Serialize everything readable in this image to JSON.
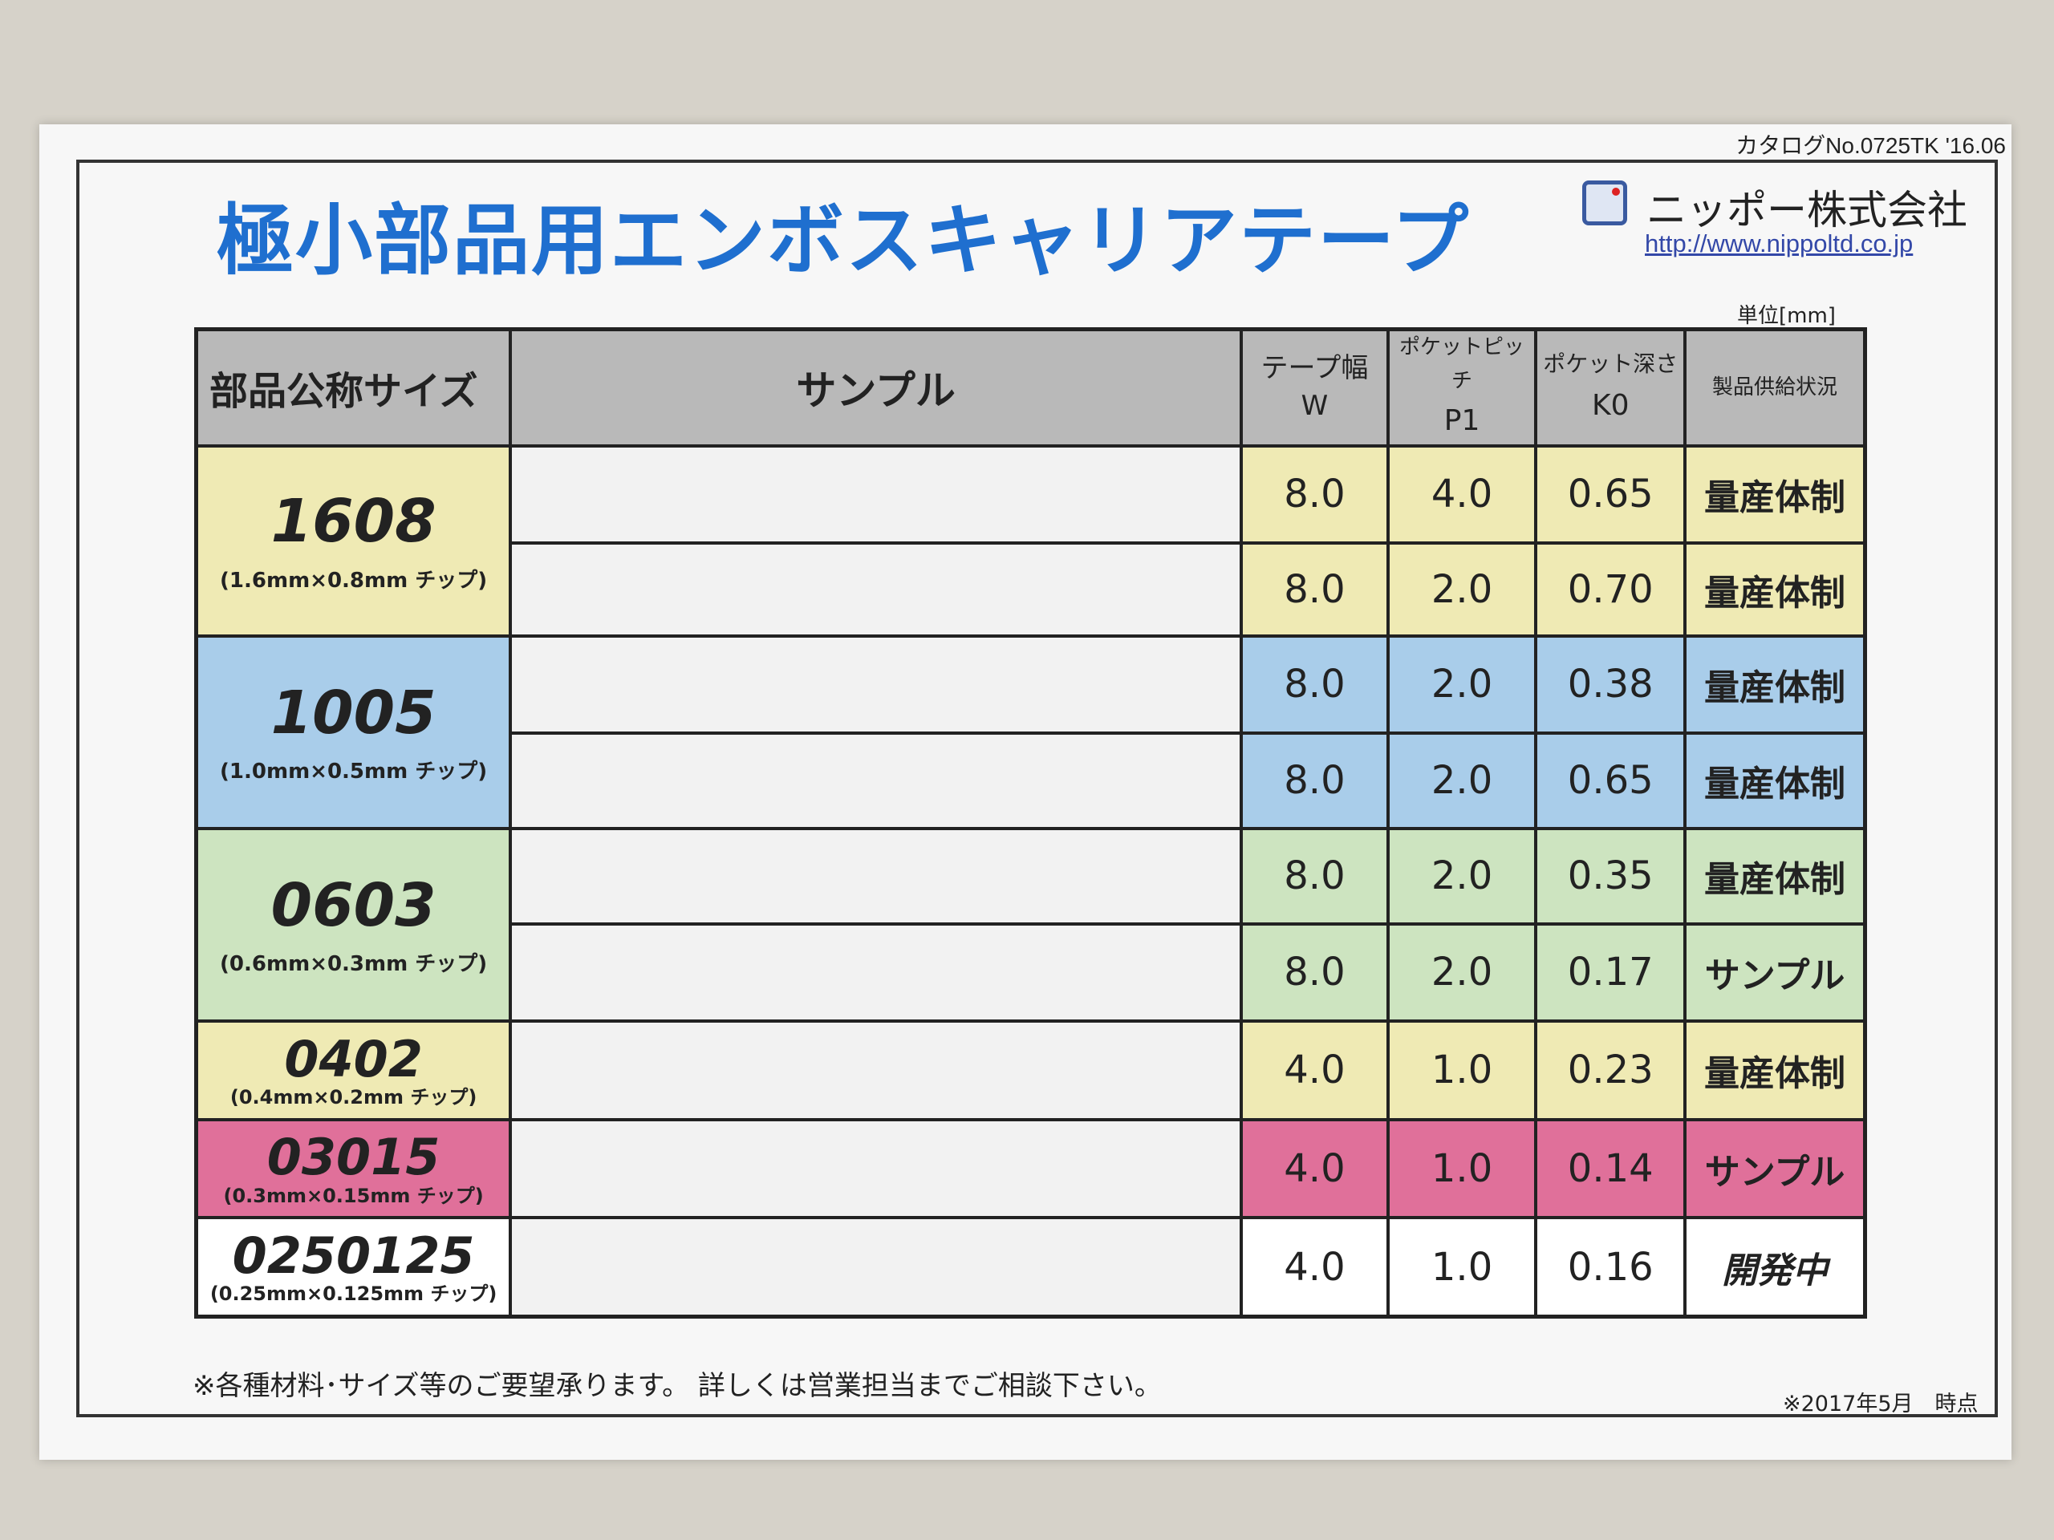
{
  "catalog_no": "カタログNo.0725TK '16.06",
  "title": "極小部品用エンボスキャリアテープ",
  "company": "ニッポー株式会社",
  "url": "http://www.nippoltd.co.jp",
  "unit": "単位[mm]",
  "colors": {
    "title": "#1f6fcf",
    "yellow": "#efeab4",
    "blue": "#a9cdea",
    "green": "#cde4c0",
    "pink": "#e0709a",
    "white": "#ffffff",
    "header": "#b9b9b9"
  },
  "headers": {
    "size": "部品公称サイズ",
    "sample": "サンプル",
    "w1": "テープ幅",
    "w2": "W",
    "p1": "ポケットピッチ",
    "p2": "P1",
    "k1": "ポケット深さ",
    "k2": "K0",
    "status": "製品供給状況"
  },
  "groups": [
    {
      "code": "1608",
      "dim": "(1.6mm×0.8mm チップ)",
      "color": "#efeab4",
      "rows": [
        {
          "tape": "clear",
          "w": "8.0",
          "p1": "4.0",
          "k0": "0.65",
          "status": "量産体制"
        },
        {
          "tape": "clear",
          "w": "8.0",
          "p1": "2.0",
          "k0": "0.70",
          "status": "量産体制"
        }
      ]
    },
    {
      "code": "1005",
      "dim": "(1.0mm×0.5mm チップ)",
      "color": "#a9cdea",
      "rows": [
        {
          "tape": "dark",
          "w": "8.0",
          "p1": "2.0",
          "k0": "0.38",
          "status": "量産体制"
        },
        {
          "tape": "clear",
          "w": "8.0",
          "p1": "2.0",
          "k0": "0.65",
          "status": "量産体制"
        }
      ]
    },
    {
      "code": "0603",
      "dim": "(0.6mm×0.3mm チップ)",
      "color": "#cde4c0",
      "rows": [
        {
          "tape": "dark",
          "w": "8.0",
          "p1": "2.0",
          "k0": "0.35",
          "status": "量産体制"
        },
        {
          "tape": "dark",
          "w": "8.0",
          "p1": "2.0",
          "k0": "0.17",
          "status": "サンプル"
        }
      ]
    },
    {
      "code": "0402",
      "dim": "(0.4mm×0.2mm チップ)",
      "color": "#efeab4",
      "rows": [
        {
          "tape": "thin",
          "w": "4.0",
          "p1": "1.0",
          "k0": "0.23",
          "status": "量産体制"
        }
      ]
    },
    {
      "code": "03015",
      "dim": "(0.3mm×0.15mm チップ)",
      "color": "#e0709a",
      "rows": [
        {
          "tape": "thin",
          "w": "4.0",
          "p1": "1.0",
          "k0": "0.14",
          "status": "サンプル"
        }
      ]
    },
    {
      "code": "0250125",
      "dim": "(0.25mm×0.125mm チップ)",
      "color": "#ffffff",
      "rows": [
        {
          "tape": "thin",
          "w": "4.0",
          "p1": "1.0",
          "k0": "0.16",
          "status": "開発中"
        }
      ]
    }
  ],
  "footer_note": "※各種材料･サイズ等のご要望承ります。 詳しくは営業担当までご相談下さい。",
  "footer_date": "※2017年5月　時点"
}
